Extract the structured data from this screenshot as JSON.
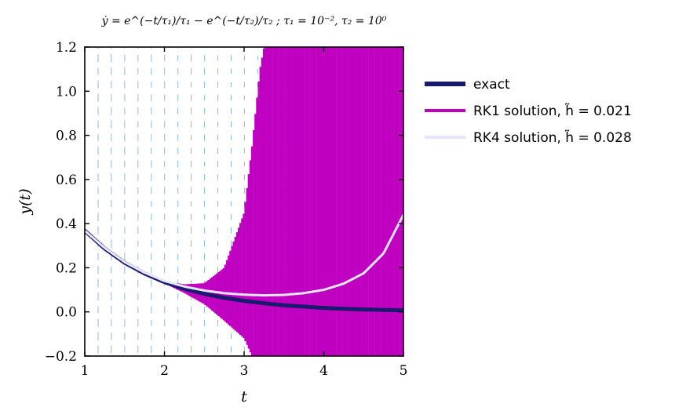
{
  "chart_data": {
    "type": "line",
    "title": "ẏ = e^(−t/τ₁)/τ₁ − e^(−t/τ₂)/τ₂ ;   τ₁ = 10⁻²,  τ₂ = 10⁰",
    "xlabel": "t",
    "ylabel": "y(t)",
    "xlim": [
      1,
      5
    ],
    "ylim": [
      -0.2,
      1.2
    ],
    "xticks": [
      "1",
      "2",
      "3",
      "4",
      "5"
    ],
    "yticks": [
      "−0.2",
      "0.0",
      "0.2",
      "0.4",
      "0.6",
      "0.8",
      "1.0",
      "1.2"
    ],
    "grid": false,
    "legend_position": "outside-right-top",
    "series": [
      {
        "name": "exact",
        "color": "#191970",
        "x": [
          1.0,
          1.25,
          1.5,
          1.75,
          2.0,
          2.25,
          2.5,
          2.75,
          3.0,
          3.25,
          3.5,
          3.75,
          4.0,
          4.25,
          4.5,
          4.75,
          5.0
        ],
        "y": [
          0.368,
          0.287,
          0.223,
          0.174,
          0.135,
          0.105,
          0.082,
          0.064,
          0.05,
          0.039,
          0.03,
          0.024,
          0.018,
          0.014,
          0.011,
          0.009,
          0.007
        ]
      },
      {
        "name": "RK1 solution, h̃ = 0.021",
        "color": "#c000c0",
        "x": [
          1.0,
          1.25,
          1.5,
          1.75,
          2.0,
          2.25,
          2.5,
          2.75,
          3.0,
          3.1,
          3.2,
          3.25,
          3.5,
          4.0,
          4.5,
          5.0
        ],
        "y_upper": [
          0.368,
          0.287,
          0.223,
          0.176,
          0.14,
          0.125,
          0.13,
          0.2,
          0.45,
          0.75,
          1.1,
          1.2,
          1.2,
          1.2,
          1.2,
          1.2
        ],
        "y_lower": [
          0.368,
          0.287,
          0.223,
          0.172,
          0.13,
          0.085,
          0.035,
          -0.04,
          -0.12,
          -0.2,
          -0.2,
          -0.2,
          -0.2,
          -0.2,
          -0.2,
          -0.2
        ]
      },
      {
        "name": "RK4 solution, h̃ = 0.028",
        "color": "#e6e6fa",
        "x": [
          1.0,
          1.25,
          1.5,
          1.75,
          2.0,
          2.25,
          2.5,
          2.75,
          3.0,
          3.25,
          3.5,
          3.75,
          4.0,
          4.25,
          4.5,
          4.75,
          5.0
        ],
        "y": [
          0.368,
          0.29,
          0.226,
          0.178,
          0.14,
          0.115,
          0.097,
          0.085,
          0.078,
          0.075,
          0.077,
          0.085,
          0.1,
          0.128,
          0.175,
          0.265,
          0.44
        ]
      }
    ]
  }
}
